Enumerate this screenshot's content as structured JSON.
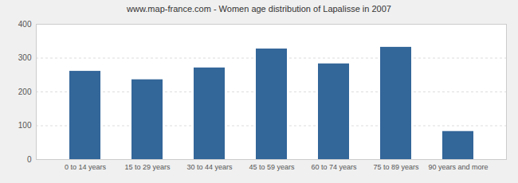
{
  "chart_data": {
    "type": "bar",
    "title": "www.map-france.com - Women age distribution of Lapalisse in 2007",
    "categories": [
      "0 to 14 years",
      "15 to 29 years",
      "30 to 44 years",
      "45 to 59 years",
      "60 to 74 years",
      "75 to 89 years",
      "90 years and more"
    ],
    "values": [
      261,
      236,
      271,
      327,
      283,
      332,
      83
    ],
    "color": "#336699",
    "ylim": [
      0,
      400
    ],
    "yticks": [
      0,
      100,
      200,
      300,
      400
    ],
    "grid": true
  }
}
